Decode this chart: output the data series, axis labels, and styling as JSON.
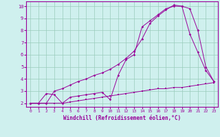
{
  "bg_color": "#cff0ee",
  "line_color": "#990099",
  "grid_color": "#99ccbb",
  "xlabel": "Windchill (Refroidissement éolien,°C)",
  "ylim": [
    1.7,
    10.4
  ],
  "xlim": [
    -0.5,
    23.5
  ],
  "yticks": [
    2,
    3,
    4,
    5,
    6,
    7,
    8,
    9,
    10
  ],
  "xticks": [
    0,
    1,
    2,
    3,
    4,
    5,
    6,
    7,
    8,
    9,
    10,
    11,
    12,
    13,
    14,
    15,
    16,
    17,
    18,
    19,
    20,
    21,
    22,
    23
  ],
  "line1_x": [
    0,
    1,
    2,
    3,
    4,
    5,
    6,
    7,
    8,
    9,
    10,
    11,
    12,
    13,
    14,
    15,
    16,
    17,
    18,
    19,
    20,
    21,
    22,
    23
  ],
  "line1_y": [
    2.0,
    2.0,
    2.0,
    2.0,
    2.0,
    2.1,
    2.2,
    2.3,
    2.4,
    2.5,
    2.6,
    2.7,
    2.8,
    2.9,
    3.0,
    3.1,
    3.2,
    3.2,
    3.3,
    3.3,
    3.4,
    3.5,
    3.6,
    3.7
  ],
  "line2_x": [
    0,
    1,
    2,
    3,
    4,
    5,
    6,
    7,
    8,
    9,
    10,
    11,
    12,
    13,
    14,
    15,
    16,
    17,
    18,
    19,
    20,
    21,
    22,
    23
  ],
  "line2_y": [
    2.0,
    2.0,
    2.8,
    2.7,
    2.0,
    2.5,
    2.6,
    2.7,
    2.8,
    2.9,
    2.3,
    4.3,
    5.6,
    6.0,
    8.3,
    8.8,
    9.3,
    9.8,
    10.0,
    10.0,
    7.7,
    6.2,
    4.7,
    3.8
  ],
  "line3_x": [
    0,
    1,
    2,
    3,
    4,
    5,
    6,
    7,
    8,
    9,
    10,
    11,
    12,
    13,
    14,
    15,
    16,
    17,
    18,
    19,
    20,
    21,
    22,
    23
  ],
  "line3_y": [
    2.0,
    2.0,
    2.0,
    3.0,
    3.2,
    3.5,
    3.8,
    4.0,
    4.3,
    4.5,
    4.8,
    5.2,
    5.7,
    6.3,
    7.3,
    8.6,
    9.2,
    9.7,
    10.1,
    10.0,
    9.8,
    8.0,
    5.0,
    3.8
  ]
}
